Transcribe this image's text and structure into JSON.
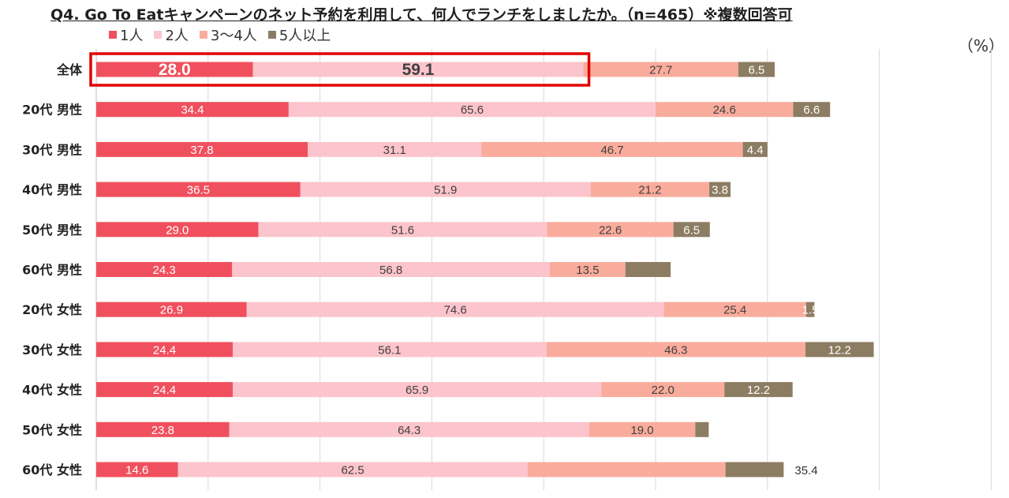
{
  "title": "Q4. Go To Eatキャンペーンのネット予約を利用して、何人でランチをしましたか。（n=465）※複数回答可",
  "unit": "（%）",
  "chart_data": {
    "type": "bar",
    "orientation": "horizontal",
    "stacked": true,
    "categories": [
      "全体",
      "20代 男性",
      "30代 男性",
      "40代 男性",
      "50代 男性",
      "60代 男性",
      "20代 女性",
      "30代 女性",
      "40代 女性",
      "50代 女性",
      "60代 女性"
    ],
    "series": [
      {
        "name": "1人",
        "color": "#f0505e",
        "values": [
          28.0,
          34.4,
          37.8,
          36.5,
          29.0,
          24.3,
          26.9,
          24.4,
          24.4,
          23.8,
          14.6
        ]
      },
      {
        "name": "2人",
        "color": "#fcc4cc",
        "values": [
          59.1,
          65.6,
          31.1,
          51.9,
          51.6,
          56.8,
          74.6,
          56.1,
          65.9,
          64.3,
          62.5
        ]
      },
      {
        "name": "3〜4人",
        "color": "#f9ac9c",
        "values": [
          27.7,
          24.6,
          46.7,
          21.2,
          22.6,
          13.5,
          25.4,
          46.3,
          22.0,
          19.0,
          35.4
        ]
      },
      {
        "name": "5人以上",
        "color": "#8c7c62",
        "values": [
          6.5,
          6.6,
          4.4,
          3.8,
          6.5,
          8.1,
          1.5,
          12.2,
          12.2,
          2.4,
          10.4
        ]
      }
    ],
    "value_labels": [
      [
        "28.0",
        "59.1",
        "27.7",
        "6.5"
      ],
      [
        "34.4",
        "65.6",
        "24.6",
        "6.6"
      ],
      [
        "37.8",
        "31.1",
        "46.7",
        "4.4"
      ],
      [
        "36.5",
        "51.9",
        "21.2",
        "3.8"
      ],
      [
        "29.0",
        "51.6",
        "22.6",
        "6.5"
      ],
      [
        "24.3",
        "56.8",
        "13.5",
        ""
      ],
      [
        "26.9",
        "74.6",
        "25.4",
        "1.5"
      ],
      [
        "24.4",
        "56.1",
        "46.3",
        "12.2"
      ],
      [
        "24.4",
        "65.9",
        "22.0",
        "12.2"
      ],
      [
        "23.8",
        "64.3",
        "19.0",
        ""
      ],
      [
        "14.6",
        "62.5",
        "",
        ""
      ]
    ],
    "outside_label": {
      "row": 10,
      "text": "35.4"
    },
    "highlight_row": 0,
    "xlim": [
      0,
      160
    ],
    "grid": true
  }
}
